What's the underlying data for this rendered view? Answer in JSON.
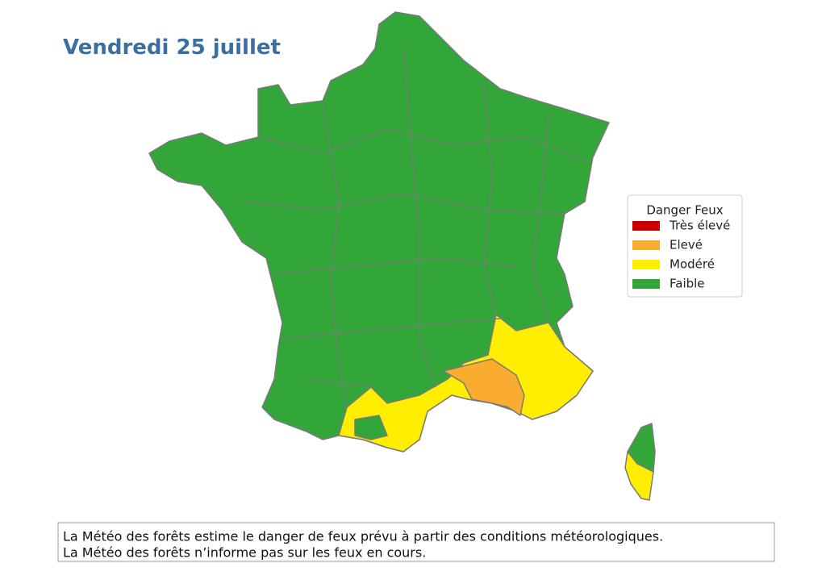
{
  "title": "Vendredi 25 juillet",
  "legend": {
    "title": "Danger Feux",
    "items": [
      {
        "label": "Très élevé",
        "color": "#cc0000"
      },
      {
        "label": "Elevé",
        "color": "#f9ac30"
      },
      {
        "label": "Modéré",
        "color": "#ffee00"
      },
      {
        "label": "Faible",
        "color": "#33a63a"
      }
    ]
  },
  "note": {
    "lines": [
      "La Météo des forêts estime le danger de feux prévu à partir des conditions météorologiques.",
      "La Météo des forêts n’informe pas sur les feux en cours."
    ]
  }
}
